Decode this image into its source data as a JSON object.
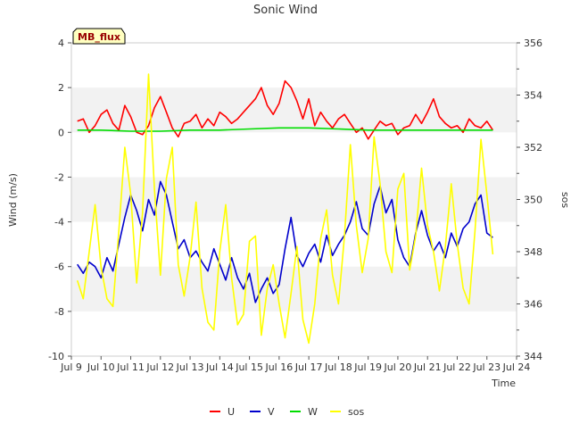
{
  "chart_data": {
    "type": "line",
    "title": "Sonic Wind",
    "xlabel": "Time",
    "ylabel": "Wind (m/s)",
    "y2label": "sos",
    "badge": "MB_flux",
    "xlim": [
      9,
      24
    ],
    "ylim": [
      -10,
      4
    ],
    "y2lim": [
      344,
      356
    ],
    "x_ticks": [
      {
        "v": 9,
        "label": "Jul 9"
      },
      {
        "v": 10,
        "label": "Jul 10"
      },
      {
        "v": 11,
        "label": "Jul 11"
      },
      {
        "v": 12,
        "label": "Jul 12"
      },
      {
        "v": 13,
        "label": "Jul 13"
      },
      {
        "v": 14,
        "label": "Jul 14"
      },
      {
        "v": 15,
        "label": "Jul 15"
      },
      {
        "v": 16,
        "label": "Jul 16"
      },
      {
        "v": 17,
        "label": "Jul 17"
      },
      {
        "v": 18,
        "label": "Jul 18"
      },
      {
        "v": 19,
        "label": "Jul 19"
      },
      {
        "v": 20,
        "label": "Jul 20"
      },
      {
        "v": 21,
        "label": "Jul 21"
      },
      {
        "v": 22,
        "label": "Jul 22"
      },
      {
        "v": 23,
        "label": "Jul 23"
      },
      {
        "v": 24,
        "label": "Jul 24"
      }
    ],
    "y_ticks": [
      {
        "v": 4,
        "label": "4"
      },
      {
        "v": 2,
        "label": "2"
      },
      {
        "v": 0,
        "label": "0"
      },
      {
        "v": -2,
        "label": "-2"
      },
      {
        "v": -4,
        "label": "-4"
      },
      {
        "v": -6,
        "label": "-6"
      },
      {
        "v": -8,
        "label": "-8"
      },
      {
        "v": -10,
        "label": "-10"
      }
    ],
    "y2_ticks": [
      {
        "v": 356,
        "label": "356"
      },
      {
        "v": 354,
        "label": "354"
      },
      {
        "v": 352,
        "label": "352"
      },
      {
        "v": 350,
        "label": "350"
      },
      {
        "v": 348,
        "label": "348"
      },
      {
        "v": 346,
        "label": "346"
      },
      {
        "v": 344,
        "label": "344"
      }
    ],
    "grid_bands": true,
    "legend_position": "bottom",
    "series": [
      {
        "name": "U",
        "color": "#ff0000",
        "axis": "left",
        "x": [
          9.2,
          9.4,
          9.6,
          9.8,
          10.0,
          10.2,
          10.4,
          10.6,
          10.8,
          11.0,
          11.2,
          11.4,
          11.6,
          11.8,
          12.0,
          12.2,
          12.4,
          12.6,
          12.8,
          13.0,
          13.2,
          13.4,
          13.6,
          13.8,
          14.0,
          14.2,
          14.4,
          14.6,
          14.8,
          15.0,
          15.2,
          15.4,
          15.6,
          15.8,
          16.0,
          16.2,
          16.4,
          16.6,
          16.8,
          17.0,
          17.2,
          17.4,
          17.6,
          17.8,
          18.0,
          18.2,
          18.4,
          18.6,
          18.8,
          19.0,
          19.2,
          19.4,
          19.6,
          19.8,
          20.0,
          20.2,
          20.4,
          20.6,
          20.8,
          21.0,
          21.2,
          21.4,
          21.6,
          21.8,
          22.0,
          22.2,
          22.4,
          22.6,
          22.8,
          23.0,
          23.2
        ],
        "y": [
          0.5,
          0.6,
          0.0,
          0.3,
          0.8,
          1.0,
          0.4,
          0.1,
          1.2,
          0.7,
          0.0,
          -0.1,
          0.3,
          1.1,
          1.6,
          0.9,
          0.2,
          -0.2,
          0.4,
          0.5,
          0.8,
          0.2,
          0.6,
          0.3,
          0.9,
          0.7,
          0.4,
          0.6,
          0.9,
          1.2,
          1.5,
          2.0,
          1.2,
          0.8,
          1.3,
          2.3,
          2.0,
          1.4,
          0.6,
          1.5,
          0.3,
          0.9,
          0.5,
          0.2,
          0.6,
          0.8,
          0.4,
          0.0,
          0.2,
          -0.3,
          0.1,
          0.5,
          0.3,
          0.4,
          -0.1,
          0.2,
          0.3,
          0.8,
          0.4,
          0.9,
          1.5,
          0.7,
          0.4,
          0.2,
          0.3,
          0.0,
          0.6,
          0.3,
          0.2,
          0.5,
          0.1
        ]
      },
      {
        "name": "V",
        "color": "#0000cc",
        "axis": "left",
        "x": [
          9.2,
          9.4,
          9.6,
          9.8,
          10.0,
          10.2,
          10.4,
          10.6,
          10.8,
          11.0,
          11.2,
          11.4,
          11.6,
          11.8,
          12.0,
          12.2,
          12.4,
          12.6,
          12.8,
          13.0,
          13.2,
          13.4,
          13.6,
          13.8,
          14.0,
          14.2,
          14.4,
          14.6,
          14.8,
          15.0,
          15.2,
          15.4,
          15.6,
          15.8,
          16.0,
          16.2,
          16.4,
          16.6,
          16.8,
          17.0,
          17.2,
          17.4,
          17.6,
          17.8,
          18.0,
          18.2,
          18.4,
          18.6,
          18.8,
          19.0,
          19.2,
          19.4,
          19.6,
          19.8,
          20.0,
          20.2,
          20.4,
          20.6,
          20.8,
          21.0,
          21.2,
          21.4,
          21.6,
          21.8,
          22.0,
          22.2,
          22.4,
          22.6,
          22.8,
          23.0,
          23.2
        ],
        "y": [
          -5.9,
          -6.3,
          -5.8,
          -6.0,
          -6.5,
          -5.6,
          -6.2,
          -5.0,
          -3.8,
          -2.8,
          -3.5,
          -4.4,
          -3.0,
          -3.7,
          -2.2,
          -2.8,
          -4.0,
          -5.2,
          -4.8,
          -5.6,
          -5.3,
          -5.8,
          -6.2,
          -5.2,
          -5.9,
          -6.6,
          -5.6,
          -6.5,
          -7.0,
          -6.3,
          -7.6,
          -7.0,
          -6.5,
          -7.2,
          -6.8,
          -5.2,
          -3.8,
          -5.5,
          -6.0,
          -5.4,
          -5.0,
          -5.8,
          -4.6,
          -5.5,
          -5.0,
          -4.6,
          -4.0,
          -3.1,
          -4.3,
          -4.6,
          -3.2,
          -2.4,
          -3.6,
          -3.0,
          -4.8,
          -5.6,
          -6.0,
          -4.5,
          -3.5,
          -4.6,
          -5.3,
          -4.9,
          -5.6,
          -4.5,
          -5.1,
          -4.3,
          -4.0,
          -3.2,
          -2.8,
          -4.5,
          -4.7
        ]
      },
      {
        "name": "W",
        "color": "#00dd00",
        "axis": "left",
        "x": [
          9.2,
          10.0,
          11.0,
          12.0,
          13.0,
          14.0,
          15.0,
          16.0,
          17.0,
          18.0,
          19.0,
          20.0,
          21.0,
          22.0,
          23.2
        ],
        "y": [
          0.1,
          0.1,
          0.05,
          0.05,
          0.1,
          0.1,
          0.15,
          0.2,
          0.2,
          0.15,
          0.1,
          0.1,
          0.1,
          0.1,
          0.1
        ]
      },
      {
        "name": "sos",
        "color": "#ffff00",
        "axis": "right",
        "x": [
          9.2,
          9.4,
          9.6,
          9.8,
          10.0,
          10.2,
          10.4,
          10.6,
          10.8,
          11.0,
          11.2,
          11.4,
          11.6,
          11.8,
          12.0,
          12.2,
          12.4,
          12.6,
          12.8,
          13.0,
          13.2,
          13.4,
          13.6,
          13.8,
          14.0,
          14.2,
          14.4,
          14.6,
          14.8,
          15.0,
          15.2,
          15.4,
          15.6,
          15.8,
          16.0,
          16.2,
          16.4,
          16.6,
          16.8,
          17.0,
          17.2,
          17.4,
          17.6,
          17.8,
          18.0,
          18.2,
          18.4,
          18.6,
          18.8,
          19.0,
          19.2,
          19.4,
          19.6,
          19.8,
          20.0,
          20.2,
          20.4,
          20.6,
          20.8,
          21.0,
          21.2,
          21.4,
          21.6,
          21.8,
          22.0,
          22.2,
          22.4,
          22.6,
          22.8,
          23.0,
          23.2
        ],
        "y": [
          346.9,
          346.2,
          348.0,
          349.8,
          347.4,
          346.2,
          345.9,
          348.8,
          352.0,
          350.2,
          346.8,
          349.5,
          354.8,
          350.4,
          347.1,
          350.8,
          352.0,
          347.5,
          346.3,
          347.8,
          349.9,
          346.6,
          345.3,
          345.0,
          348.0,
          349.8,
          347.0,
          345.2,
          345.6,
          348.4,
          348.6,
          344.8,
          346.6,
          347.5,
          346.0,
          344.7,
          346.4,
          348.2,
          345.4,
          344.5,
          346.0,
          348.5,
          349.6,
          347.1,
          346.0,
          348.6,
          352.1,
          349.0,
          347.2,
          348.5,
          352.4,
          350.6,
          348.0,
          347.2,
          350.4,
          351.0,
          347.3,
          348.6,
          351.2,
          349.0,
          348.0,
          346.5,
          348.2,
          350.6,
          348.3,
          346.6,
          346.0,
          348.8,
          352.3,
          350.2,
          347.9
        ]
      }
    ]
  }
}
